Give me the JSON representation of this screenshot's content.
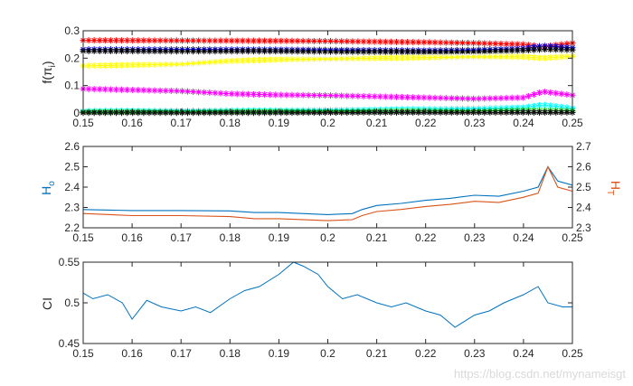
{
  "chart_data": [
    {
      "type": "line",
      "ylabel_main": "f(π",
      "ylabel_sub": "i",
      "ylabel_tail": ")",
      "xlim": [
        0.15,
        0.25
      ],
      "ylim": [
        0,
        0.3
      ],
      "xticks": [
        0.15,
        0.16,
        0.17,
        0.18,
        0.19,
        0.2,
        0.21,
        0.22,
        0.23,
        0.24,
        0.25
      ],
      "yticks": [
        0,
        0.1,
        0.2,
        0.3
      ],
      "grid": false,
      "legend": "none",
      "marker_count": 90,
      "series": [
        {
          "color": "#ff0000",
          "marker": "*",
          "line": "dotted",
          "x": [
            0.15,
            0.17,
            0.19,
            0.2,
            0.21,
            0.22,
            0.23,
            0.24,
            0.244,
            0.25
          ],
          "y": [
            0.265,
            0.264,
            0.263,
            0.262,
            0.26,
            0.258,
            0.255,
            0.25,
            0.242,
            0.255
          ]
        },
        {
          "color": "#0000cc",
          "marker": "*",
          "line": "dotted",
          "x": [
            0.15,
            0.17,
            0.19,
            0.2,
            0.21,
            0.22,
            0.23,
            0.24,
            0.244,
            0.25
          ],
          "y": [
            0.232,
            0.232,
            0.231,
            0.23,
            0.229,
            0.228,
            0.23,
            0.235,
            0.245,
            0.238
          ]
        },
        {
          "color": "#000000",
          "marker": "*",
          "line": "dotted",
          "x": [
            0.15,
            0.17,
            0.19,
            0.2,
            0.21,
            0.22,
            0.23,
            0.24,
            0.244,
            0.25
          ],
          "y": [
            0.226,
            0.225,
            0.225,
            0.224,
            0.223,
            0.222,
            0.224,
            0.228,
            0.232,
            0.23
          ]
        },
        {
          "color": "#ffff00",
          "marker": "*",
          "line": "dotted",
          "x": [
            0.15,
            0.17,
            0.18,
            0.19,
            0.2,
            0.21,
            0.22,
            0.23,
            0.24,
            0.244,
            0.25
          ],
          "y": [
            0.172,
            0.178,
            0.19,
            0.195,
            0.197,
            0.2,
            0.202,
            0.205,
            0.205,
            0.2,
            0.207
          ]
        },
        {
          "color": "#ff00ff",
          "marker": "*",
          "line": "dotted",
          "x": [
            0.15,
            0.17,
            0.18,
            0.19,
            0.2,
            0.21,
            0.22,
            0.23,
            0.24,
            0.244,
            0.25
          ],
          "y": [
            0.088,
            0.08,
            0.07,
            0.066,
            0.064,
            0.06,
            0.056,
            0.052,
            0.056,
            0.078,
            0.065
          ]
        },
        {
          "color": "#00ffff",
          "marker": "*",
          "line": "dotted",
          "x": [
            0.15,
            0.17,
            0.19,
            0.21,
            0.22,
            0.23,
            0.24,
            0.244,
            0.25
          ],
          "y": [
            0.007,
            0.008,
            0.009,
            0.012,
            0.014,
            0.016,
            0.02,
            0.03,
            0.018
          ]
        },
        {
          "color": "#00aa00",
          "marker": "*",
          "line": "dotted",
          "x": [
            0.15,
            0.17,
            0.19,
            0.21,
            0.23,
            0.24,
            0.25
          ],
          "y": [
            0.004,
            0.004,
            0.005,
            0.006,
            0.007,
            0.009,
            0.008
          ]
        },
        {
          "color": "#000000",
          "marker": "*",
          "line": "dotted",
          "x": [
            0.15,
            0.17,
            0.19,
            0.21,
            0.23,
            0.25
          ],
          "y": [
            0.001,
            0.001,
            0.001,
            0.002,
            0.002,
            0.002
          ]
        }
      ]
    },
    {
      "type": "line",
      "ylabel_left_main": "H",
      "ylabel_left_sub": "o",
      "ylabel_right_main": "H",
      "ylabel_right_sub": "T",
      "xlim": [
        0.15,
        0.25
      ],
      "ylim_left": [
        2.2,
        2.6
      ],
      "ylim_right": [
        2.3,
        2.7
      ],
      "xticks": [
        0.15,
        0.16,
        0.17,
        0.18,
        0.19,
        0.2,
        0.21,
        0.22,
        0.23,
        0.24,
        0.25
      ],
      "yticks_left": [
        2.2,
        2.3,
        2.4,
        2.5,
        2.6
      ],
      "yticks_right": [
        2.3,
        2.4,
        2.5,
        2.6,
        2.7
      ],
      "left_color": "#0072bd",
      "right_color": "#d95319",
      "grid": false,
      "series": [
        {
          "axis": "left",
          "color": "#0072bd",
          "x": [
            0.15,
            0.16,
            0.17,
            0.18,
            0.185,
            0.19,
            0.2,
            0.205,
            0.207,
            0.21,
            0.215,
            0.22,
            0.225,
            0.23,
            0.235,
            0.24,
            0.243,
            0.245,
            0.247,
            0.25
          ],
          "y": [
            2.29,
            2.285,
            2.285,
            2.283,
            2.275,
            2.275,
            2.265,
            2.27,
            2.29,
            2.31,
            2.32,
            2.335,
            2.345,
            2.36,
            2.355,
            2.38,
            2.4,
            2.5,
            2.43,
            2.41
          ]
        },
        {
          "axis": "right",
          "color": "#d95319",
          "x": [
            0.15,
            0.16,
            0.17,
            0.18,
            0.185,
            0.19,
            0.2,
            0.205,
            0.207,
            0.21,
            0.215,
            0.22,
            0.225,
            0.23,
            0.235,
            0.24,
            0.243,
            0.245,
            0.247,
            0.25
          ],
          "y": [
            2.37,
            2.36,
            2.36,
            2.355,
            2.345,
            2.345,
            2.335,
            2.34,
            2.36,
            2.38,
            2.39,
            2.405,
            2.415,
            2.43,
            2.425,
            2.45,
            2.47,
            2.6,
            2.5,
            2.48
          ]
        }
      ]
    },
    {
      "type": "line",
      "ylabel": "CI",
      "xlim": [
        0.15,
        0.25
      ],
      "ylim": [
        0.45,
        0.55
      ],
      "xticks": [
        0.15,
        0.16,
        0.17,
        0.18,
        0.19,
        0.2,
        0.21,
        0.22,
        0.23,
        0.24,
        0.25
      ],
      "yticks": [
        0.45,
        0.5,
        0.55
      ],
      "grid": false,
      "series": [
        {
          "color": "#0072bd",
          "x": [
            0.15,
            0.152,
            0.155,
            0.158,
            0.16,
            0.163,
            0.166,
            0.17,
            0.173,
            0.176,
            0.18,
            0.183,
            0.186,
            0.19,
            0.193,
            0.195,
            0.198,
            0.2,
            0.203,
            0.206,
            0.21,
            0.213,
            0.216,
            0.22,
            0.223,
            0.226,
            0.23,
            0.233,
            0.236,
            0.24,
            0.243,
            0.245,
            0.248,
            0.25
          ],
          "y": [
            0.512,
            0.505,
            0.51,
            0.5,
            0.48,
            0.503,
            0.495,
            0.49,
            0.495,
            0.488,
            0.505,
            0.515,
            0.52,
            0.535,
            0.55,
            0.545,
            0.535,
            0.52,
            0.505,
            0.51,
            0.5,
            0.495,
            0.5,
            0.49,
            0.485,
            0.47,
            0.485,
            0.49,
            0.5,
            0.51,
            0.52,
            0.5,
            0.495,
            0.495
          ]
        }
      ]
    }
  ],
  "watermark": "https://blog.csdn.net/mynameisgt"
}
